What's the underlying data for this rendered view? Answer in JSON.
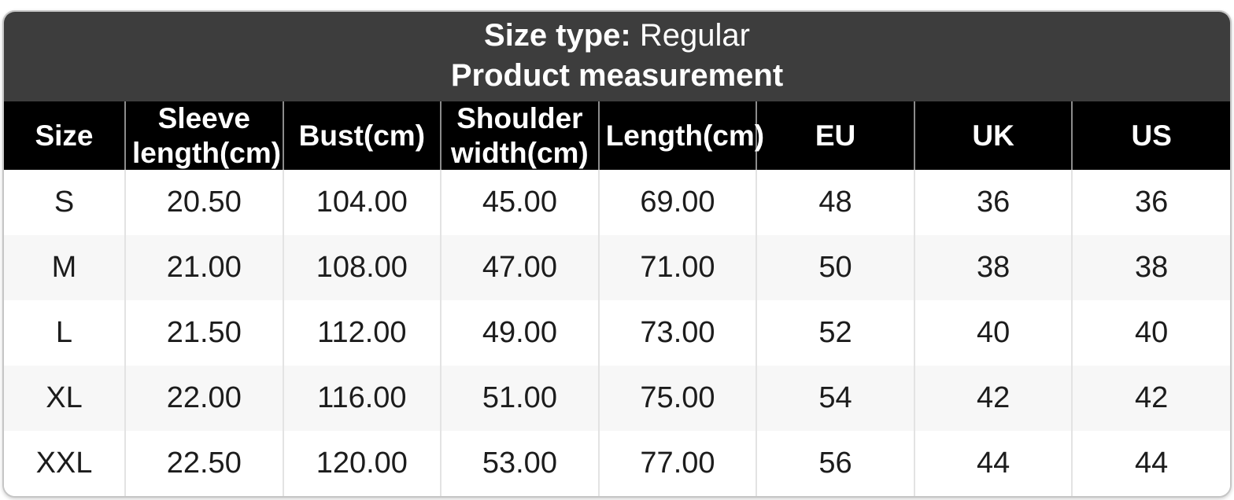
{
  "header_band": {
    "size_type_label": "Size type:",
    "size_type_value": "Regular",
    "subtitle": "Product measurement"
  },
  "table": {
    "columns": [
      "Size",
      "Sleeve length(cm)",
      "Bust(cm)",
      "Shoulder width(cm)",
      "Length(cm)",
      "EU",
      "UK",
      "US"
    ],
    "rows": [
      [
        "S",
        "20.50",
        "104.00",
        "45.00",
        "69.00",
        "48",
        "36",
        "36"
      ],
      [
        "M",
        "21.00",
        "108.00",
        "47.00",
        "71.00",
        "50",
        "38",
        "38"
      ],
      [
        "L",
        "21.50",
        "112.00",
        "49.00",
        "73.00",
        "52",
        "40",
        "40"
      ],
      [
        "XL",
        "22.00",
        "116.00",
        "51.00",
        "75.00",
        "54",
        "42",
        "42"
      ],
      [
        "XXL",
        "22.50",
        "120.00",
        "53.00",
        "77.00",
        "56",
        "44",
        "44"
      ]
    ]
  },
  "colors": {
    "band_bg": "#3d3d3d",
    "header_bg": "#000000",
    "row_alt_bg": "#f7f7f7",
    "header_divider": "#8c8c8c",
    "body_divider": "#e3e3e3",
    "card_border": "#c6c6c6",
    "text_light": "#ffffff",
    "text_dark": "#1c1c1c"
  }
}
